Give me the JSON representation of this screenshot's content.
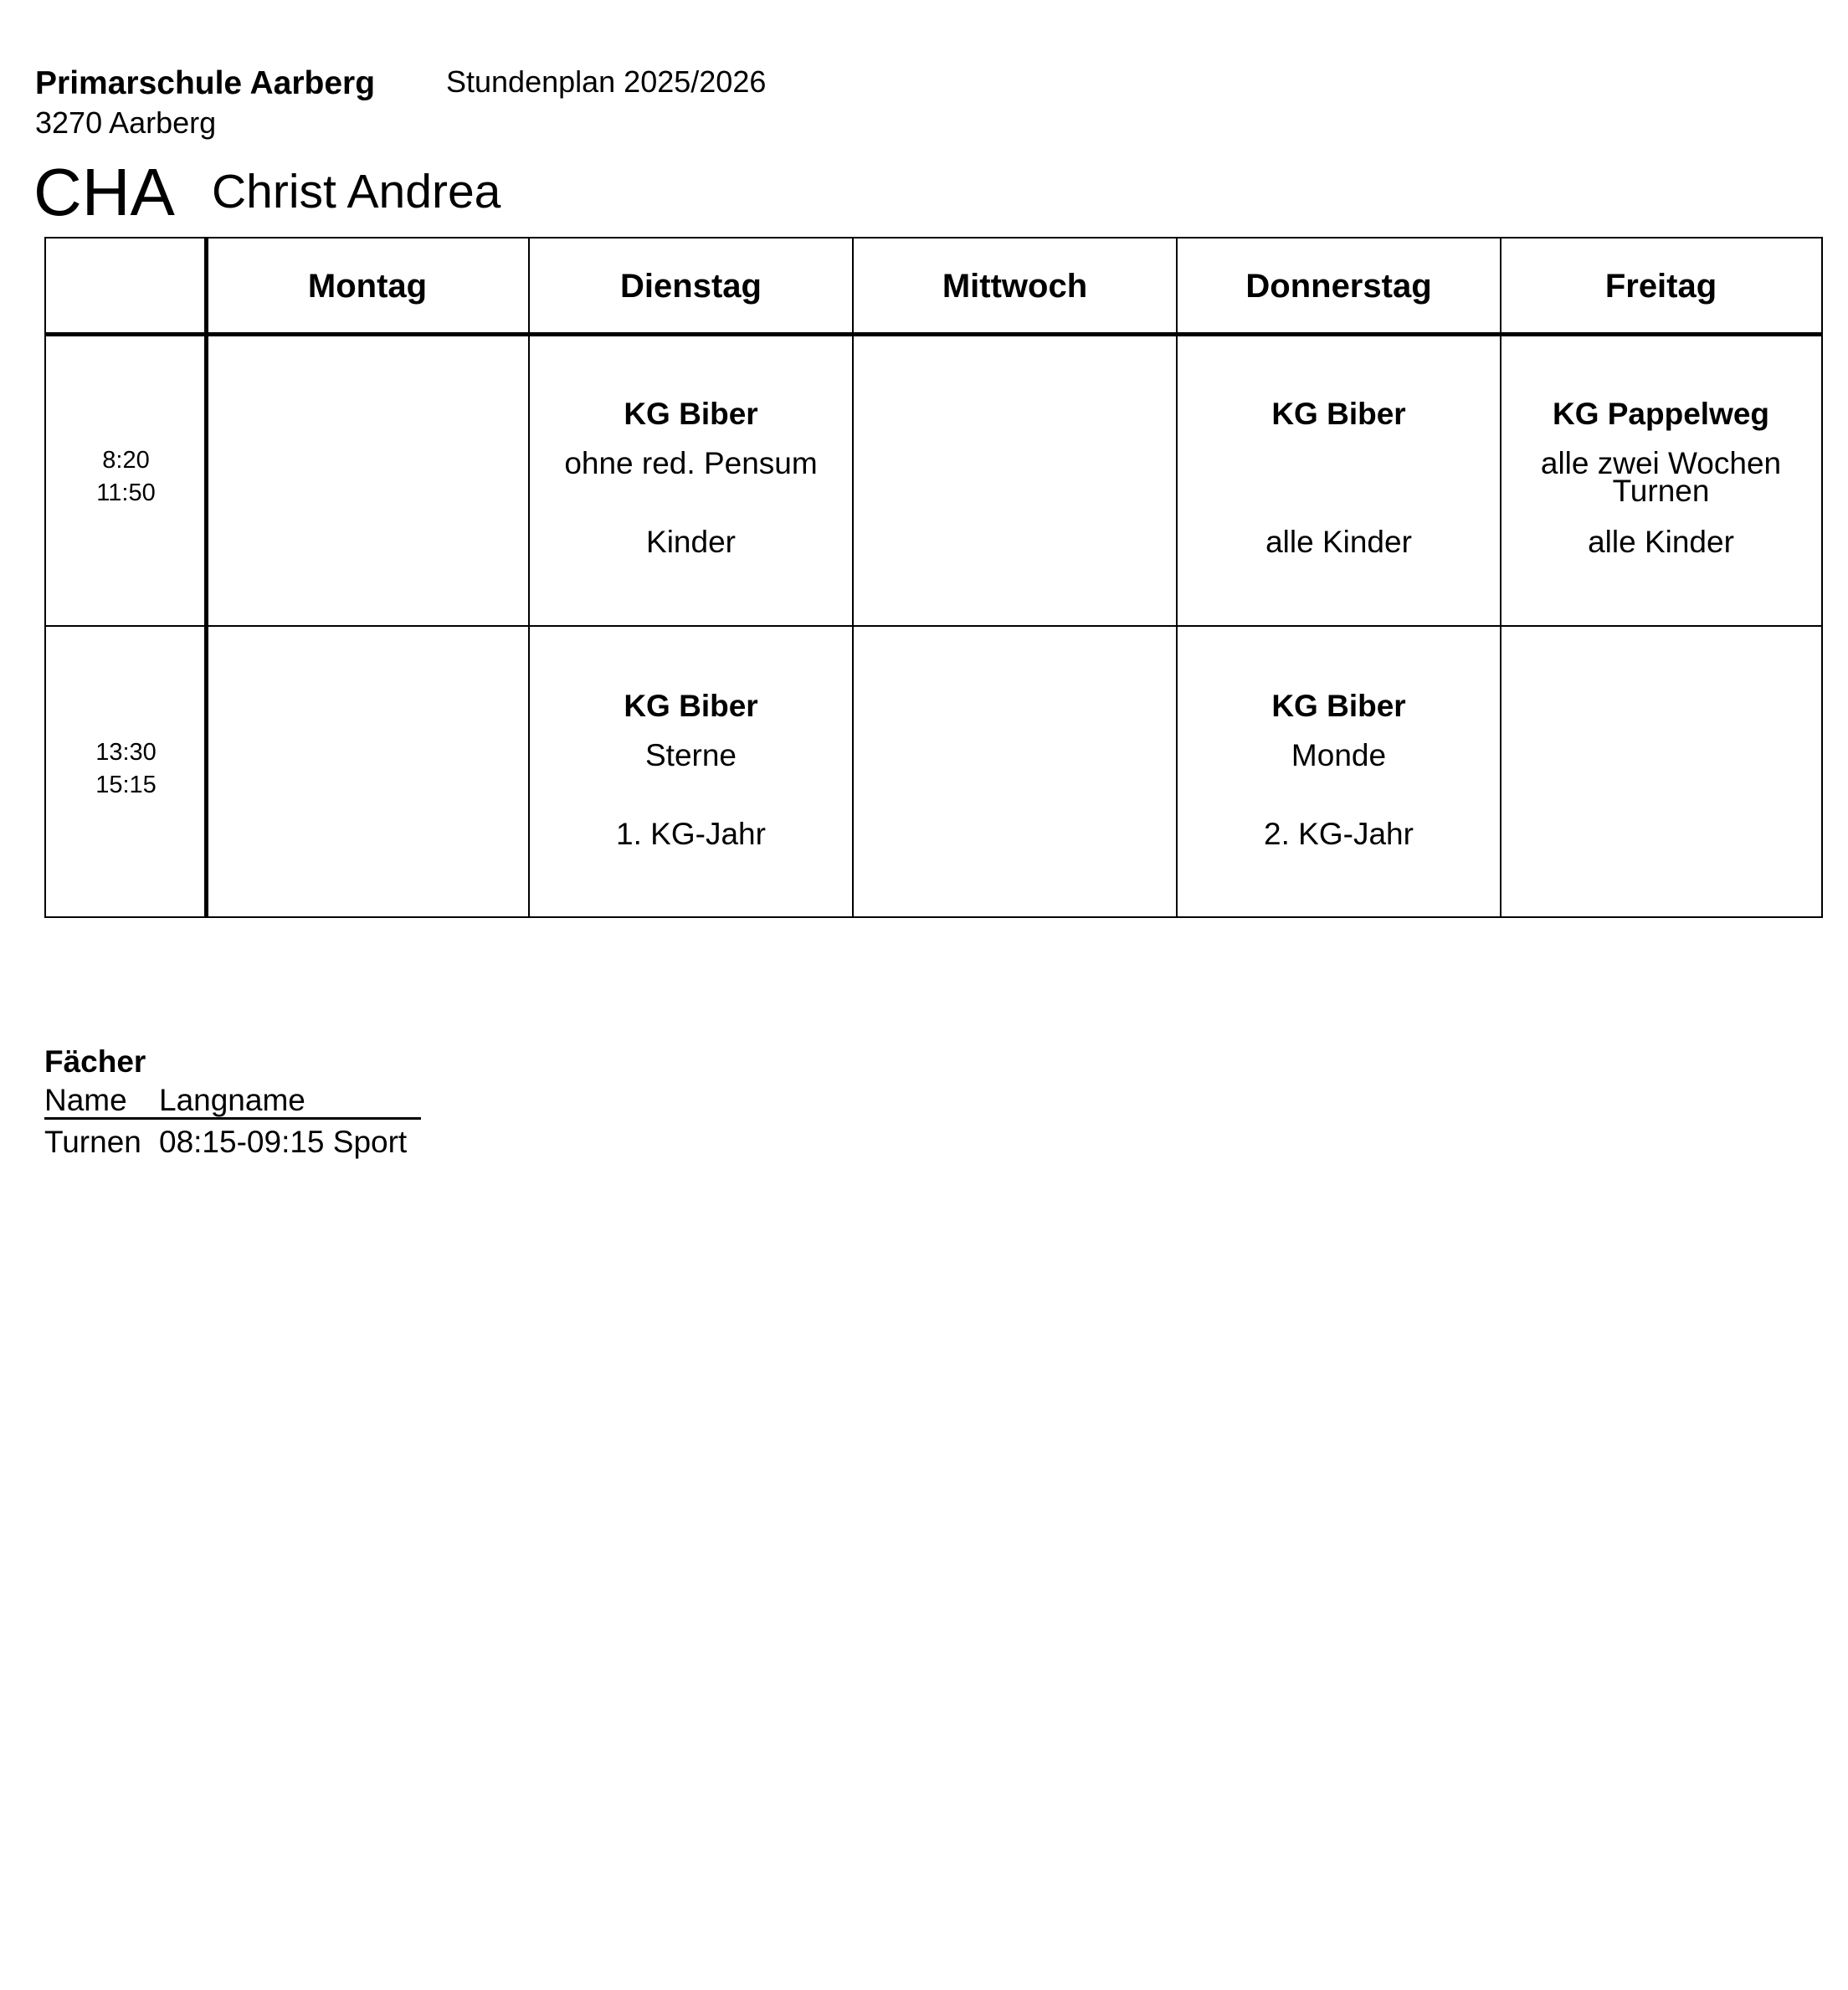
{
  "header": {
    "school": "Primarschule Aarberg",
    "city": "3270 Aarberg",
    "plan_title": "Stundenplan 2025/2026",
    "teacher_code": "CHA",
    "teacher_name": "Christ Andrea"
  },
  "timetable": {
    "days": [
      "Montag",
      "Dienstag",
      "Mittwoch",
      "Donnerstag",
      "Freitag"
    ],
    "periods": [
      {
        "start": "8:20",
        "end": "11:50"
      },
      {
        "start": "13:30",
        "end": "15:15"
      }
    ],
    "cells": [
      [
        {
          "title": "",
          "line2": "",
          "line3": "",
          "line4": ""
        },
        {
          "title": "KG Biber",
          "line2": "ohne red. Pensum",
          "line3": "",
          "line4": "Kinder"
        },
        {
          "title": "",
          "line2": "",
          "line3": "",
          "line4": ""
        },
        {
          "title": "KG Biber",
          "line2": "",
          "line3": "",
          "line4": "alle Kinder"
        },
        {
          "title": "KG Pappelweg",
          "line2": "alle zwei Wochen",
          "line3": "Turnen",
          "line4": "alle Kinder"
        }
      ],
      [
        {
          "title": "",
          "line2": "",
          "line3": "",
          "line4": ""
        },
        {
          "title": "KG Biber",
          "line2": "Sterne",
          "line3": "",
          "line4": "1. KG-Jahr"
        },
        {
          "title": "",
          "line2": "",
          "line3": "",
          "line4": ""
        },
        {
          "title": "KG Biber",
          "line2": "Monde",
          "line3": "",
          "line4": "2. KG-Jahr"
        },
        {
          "title": "",
          "line2": "",
          "line3": "",
          "line4": ""
        }
      ]
    ]
  },
  "subjects": {
    "title": "Fächer",
    "columns": [
      "Name",
      "Langname"
    ],
    "rows": [
      {
        "name": "Turnen",
        "langname": "08:15-09:15 Sport"
      }
    ]
  }
}
